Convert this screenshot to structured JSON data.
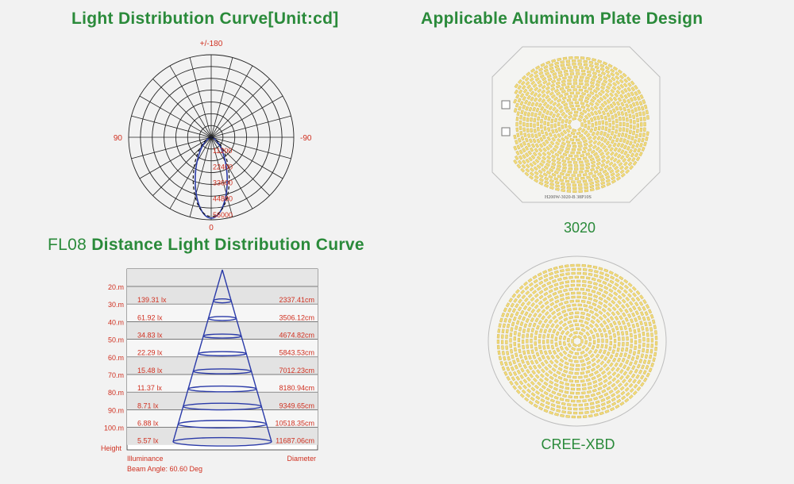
{
  "titles": {
    "polar": "Light Distribution Curve[Unit:cd]",
    "plate": "Applicable Aluminum Plate Design",
    "distance_prefix": "FL08",
    "distance": " Distance Light Distribution Curve"
  },
  "polar": {
    "angle_labels": {
      "top": "+/-180",
      "left": "90",
      "right": "-90",
      "bottom": "0"
    },
    "radial_labels": [
      "11200",
      "22400",
      "33600",
      "44800",
      "56000"
    ]
  },
  "distance_chart": {
    "rows": [
      {
        "height": "20.m",
        "illuminance": "139.31 lx",
        "diameter": "2337.41cm"
      },
      {
        "height": "30.m",
        "illuminance": "61.92 lx",
        "diameter": "3506.12cm"
      },
      {
        "height": "40.m",
        "illuminance": "34.83 lx",
        "diameter": "4674.82cm"
      },
      {
        "height": "50.m",
        "illuminance": "22.29 lx",
        "diameter": "5843.53cm"
      },
      {
        "height": "60.m",
        "illuminance": "15.48 lx",
        "diameter": "7012.23cm"
      },
      {
        "height": "70.m",
        "illuminance": "11.37 lx",
        "diameter": "8180.94cm"
      },
      {
        "height": "80.m",
        "illuminance": "8.71 lx",
        "diameter": "9349.65cm"
      },
      {
        "height": "90.m",
        "illuminance": "6.88 lx",
        "diameter": "10518.35cm"
      },
      {
        "height": "100.m",
        "illuminance": "5.57 lx",
        "diameter": "11687.06cm"
      }
    ],
    "height_label": "Height",
    "illuminance_label": "Illuminance",
    "diameter_label": "Diameter",
    "beam_label": "Beam  Angle: 60.60 Deg"
  },
  "plates": [
    {
      "caption": "3020",
      "pcb_text": "H200W-3020-B  38P10S"
    },
    {
      "caption": "CREE-XBD"
    }
  ],
  "colors": {
    "green": "#2a8a3a",
    "red": "#d03020",
    "blue": "#2a3aa8",
    "grid": "#222222"
  }
}
